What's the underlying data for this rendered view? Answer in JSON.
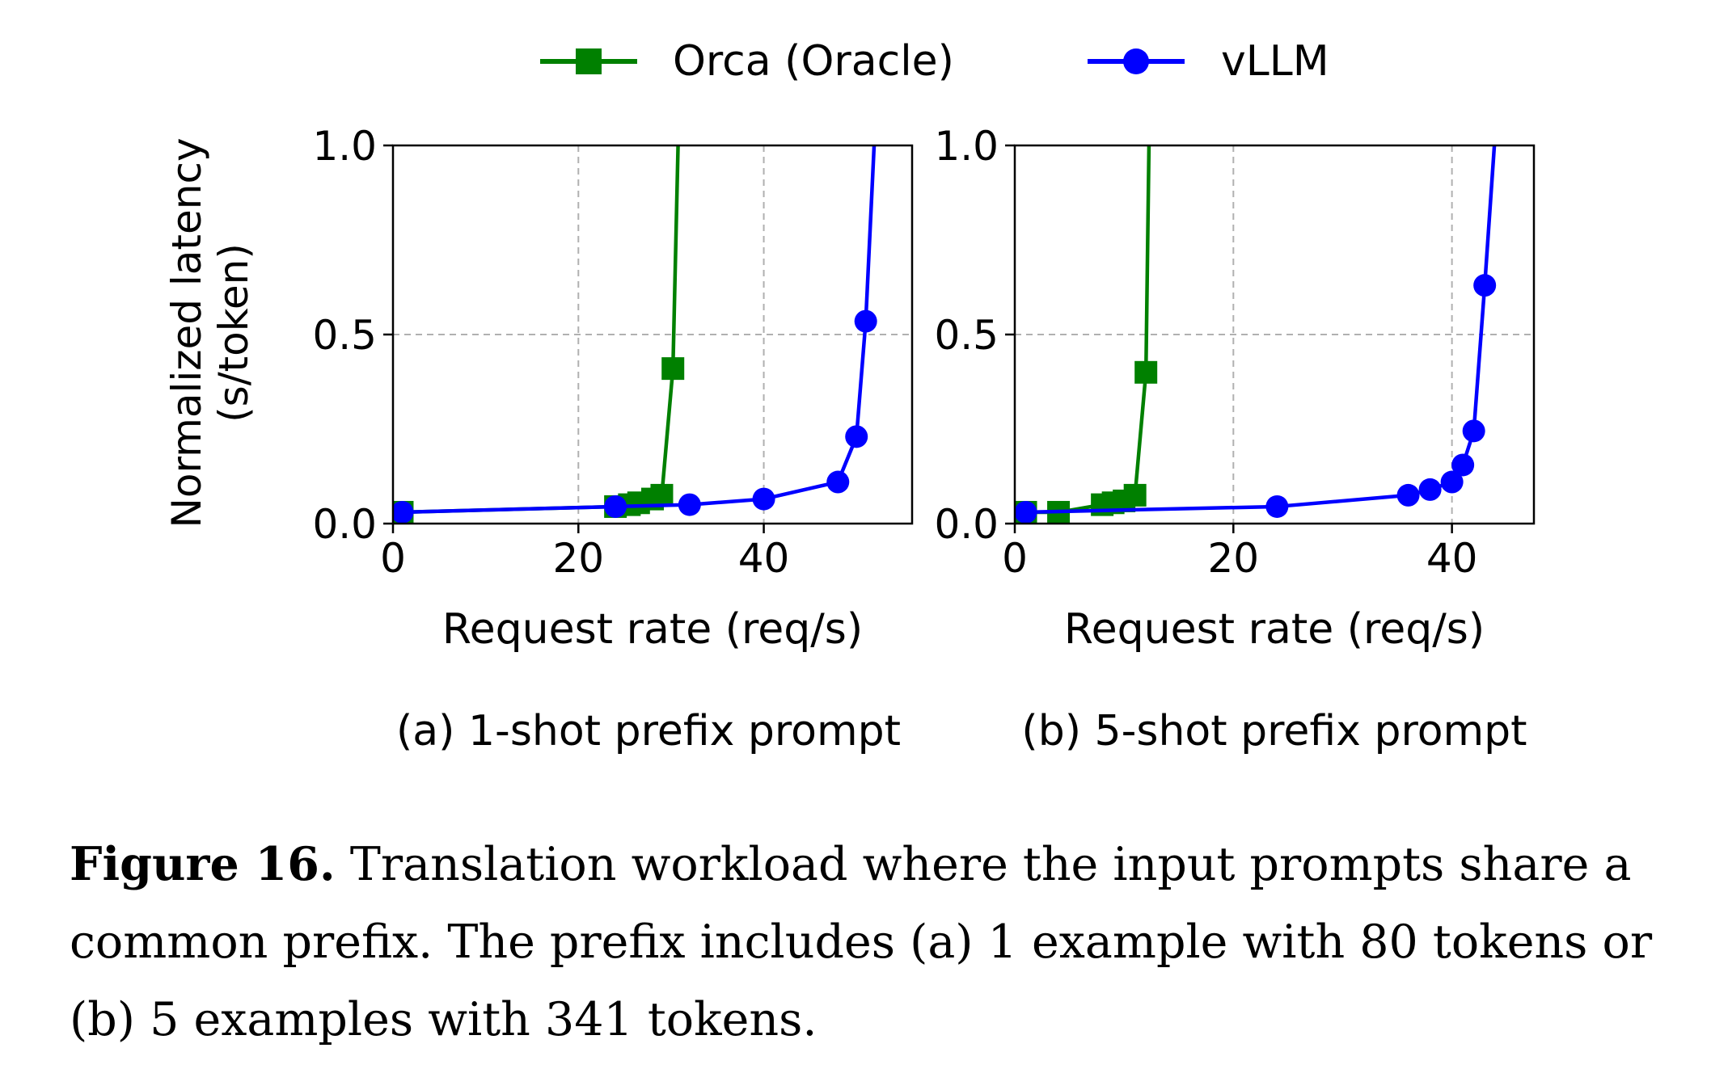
{
  "legend": {
    "entries": [
      {
        "label": "Orca (Oracle)",
        "color": "#008000",
        "marker": "square"
      },
      {
        "label": "vLLM",
        "color": "#0000ff",
        "marker": "circle"
      }
    ]
  },
  "caption": {
    "label": "Figure 16.",
    "text": "Translation workload where the input prompts share a common prefix. The prefix includes (a) 1 example with 80 tokens or (b) 5 examples with 341 tokens."
  },
  "chart_data": [
    {
      "type": "line",
      "subtitle": "(a) 1-shot prefix prompt",
      "xlabel": "Request rate (req/s)",
      "ylabel": "Normalized latency\n(s/token)",
      "xlim": [
        0,
        56
      ],
      "ylim": [
        0,
        1.0
      ],
      "xticks": [
        "0",
        "20",
        "40"
      ],
      "yticks": [
        "0.0",
        "0.5",
        "1.0"
      ],
      "grid": true,
      "series": [
        {
          "name": "Orca (Oracle)",
          "color": "#008000",
          "marker": "square",
          "points": [
            [
              1,
              0.03
            ],
            [
              24,
              0.045
            ],
            [
              25.5,
              0.05
            ],
            [
              26.5,
              0.055
            ],
            [
              28,
              0.065
            ],
            [
              29,
              0.075
            ],
            [
              30.2,
              0.41
            ],
            [
              30.8,
              1.05
            ]
          ]
        },
        {
          "name": "vLLM",
          "color": "#0000ff",
          "marker": "circle",
          "points": [
            [
              1,
              0.03
            ],
            [
              24,
              0.045
            ],
            [
              32,
              0.05
            ],
            [
              40,
              0.065
            ],
            [
              48,
              0.11
            ],
            [
              50,
              0.23
            ],
            [
              51,
              0.535
            ],
            [
              52,
              1.05
            ]
          ]
        }
      ]
    },
    {
      "type": "line",
      "subtitle": "(b) 5-shot prefix prompt",
      "xlabel": "Request rate (req/s)",
      "ylabel": "",
      "xlim": [
        0,
        47.5
      ],
      "ylim": [
        0,
        1.0
      ],
      "xticks": [
        "0",
        "20",
        "40"
      ],
      "yticks": [
        "0.0",
        "0.5",
        "1.0"
      ],
      "grid": true,
      "series": [
        {
          "name": "Orca (Oracle)",
          "color": "#008000",
          "marker": "square",
          "points": [
            [
              1,
              0.03
            ],
            [
              4,
              0.03
            ],
            [
              8,
              0.05
            ],
            [
              9,
              0.055
            ],
            [
              10,
              0.06
            ],
            [
              11,
              0.075
            ],
            [
              12,
              0.4
            ],
            [
              12.3,
              1.05
            ]
          ]
        },
        {
          "name": "vLLM",
          "color": "#0000ff",
          "marker": "circle",
          "points": [
            [
              1,
              0.03
            ],
            [
              24,
              0.045
            ],
            [
              36,
              0.075
            ],
            [
              38,
              0.09
            ],
            [
              40,
              0.11
            ],
            [
              41,
              0.155
            ],
            [
              42,
              0.245
            ],
            [
              43,
              0.63
            ],
            [
              44,
              1.05
            ]
          ]
        }
      ]
    }
  ]
}
